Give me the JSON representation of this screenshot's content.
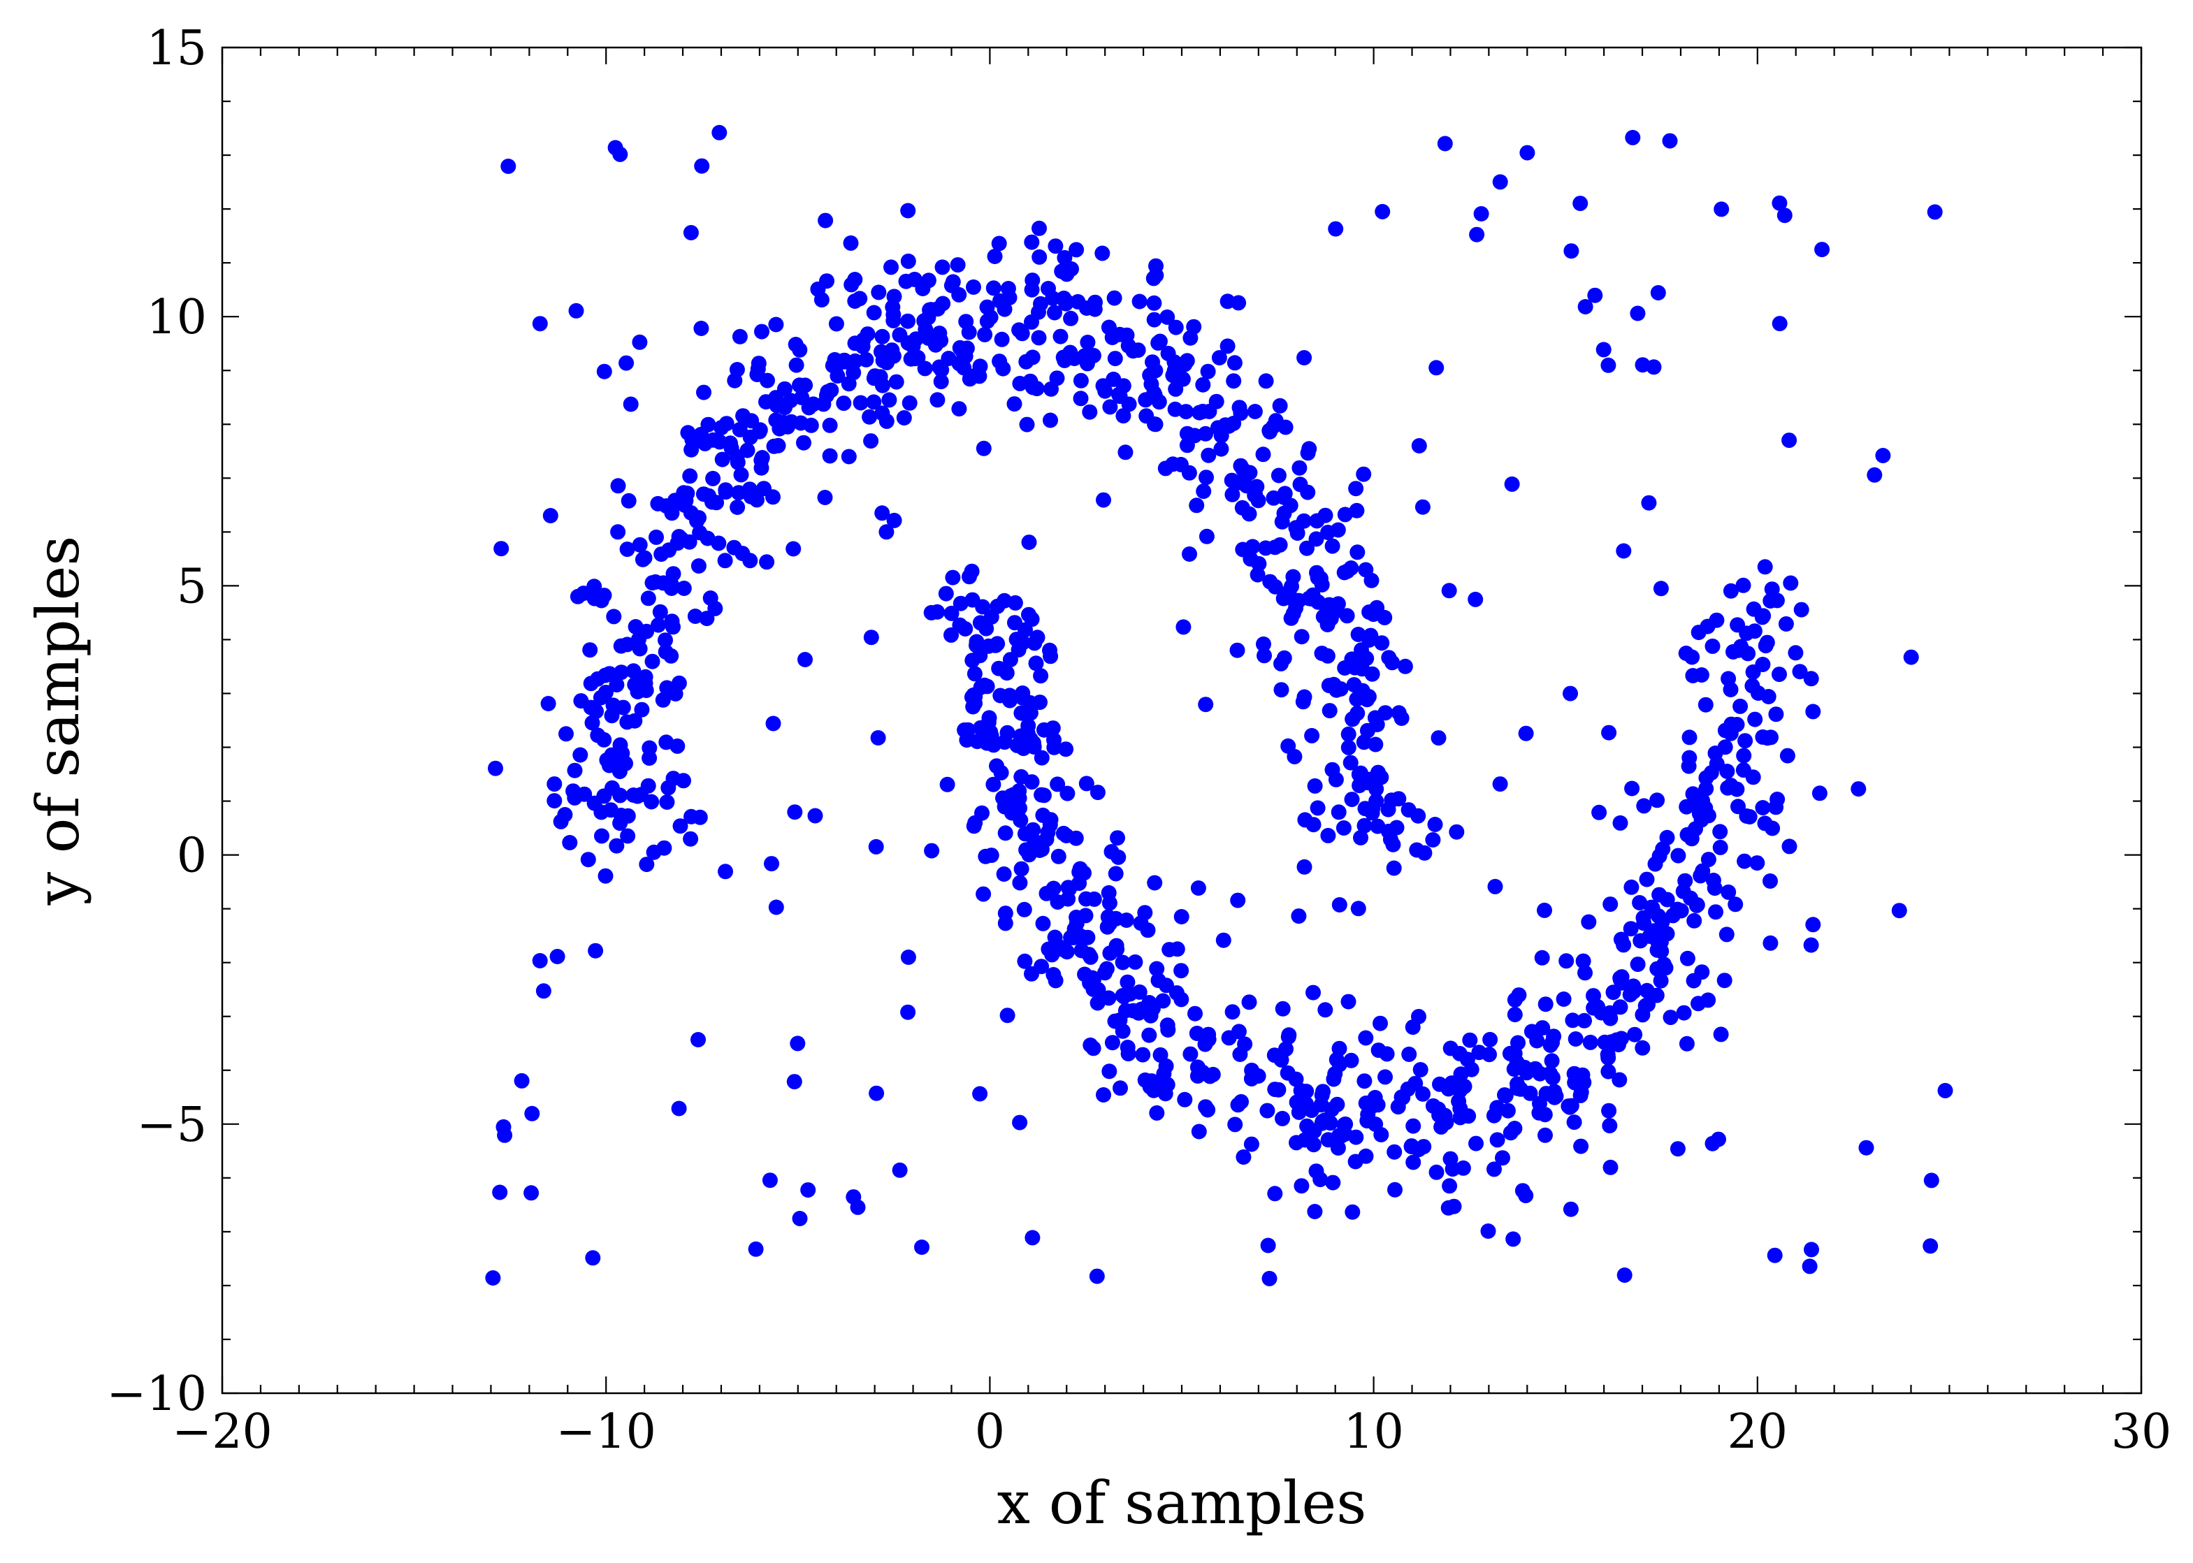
{
  "chart_data": {
    "type": "scatter",
    "title": "",
    "xlabel": "x of samples",
    "ylabel": "y of samples",
    "xlim": [
      -20,
      30
    ],
    "ylim": [
      -10,
      15
    ],
    "xticks": [
      -20,
      -10,
      0,
      10,
      20,
      30
    ],
    "yticks": [
      -10,
      -5,
      0,
      5,
      10,
      15
    ],
    "xtick_labels": [
      "−20",
      "−10",
      "0",
      "10",
      "20",
      "30"
    ],
    "ytick_labels": [
      "−10",
      "−5",
      "0",
      "5",
      "10",
      "15"
    ],
    "minor_tick_step": 1,
    "grid": false,
    "legend": "none",
    "marker_color": "#0000ff",
    "series": [
      {
        "marker": "circle",
        "points_estimated_count": 1500,
        "shape": "double-moon",
        "moons": [
          {
            "arc": "upper",
            "center": [
              0,
              0
            ],
            "radius": 10,
            "width": 3,
            "angle_range_deg": [
              0,
              180
            ]
          },
          {
            "arc": "lower",
            "center": [
              10,
              5
            ],
            "radius": 10,
            "width": 3,
            "angle_range_deg": [
              180,
              360
            ]
          }
        ],
        "outliers_estimated_count": 200,
        "outlier_x_range": [
          -13,
          25
        ],
        "outlier_y_range": [
          -8,
          13.5
        ]
      }
    ]
  }
}
